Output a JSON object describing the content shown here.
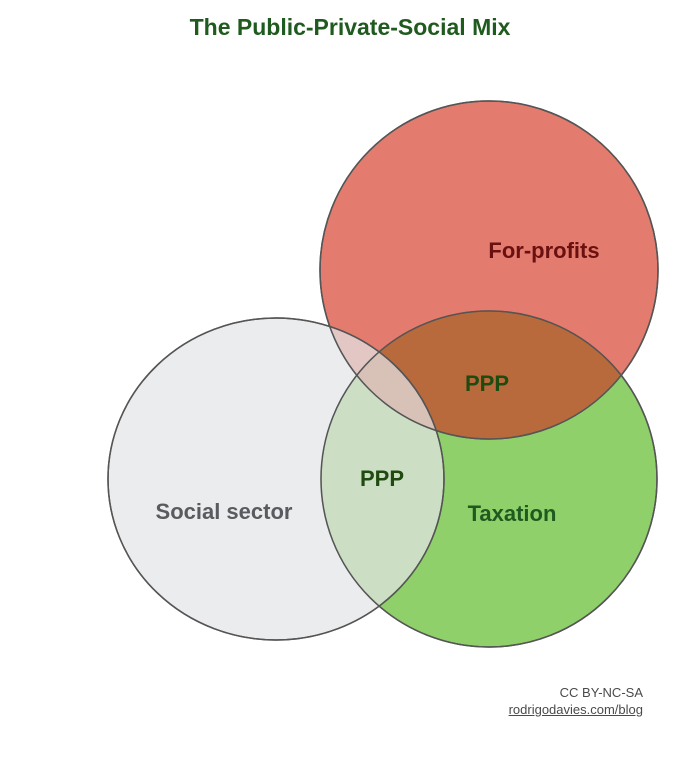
{
  "title": "The Public-Private-Social Mix",
  "colors": {
    "title": "#1f5a1f",
    "for_profits_fill": "#d84a36",
    "for_profits_label": "#6a1010",
    "taxation_fill": "#8fd06a",
    "taxation_label": "#1f5a1f",
    "social_fill": "#e3e4e7",
    "social_label": "#5a5b5e",
    "ppp_label": "#1f4a10",
    "stroke": "#555555"
  },
  "sets": {
    "for_profits": "For-profits",
    "taxation": "Taxation",
    "social_sector": "Social sector"
  },
  "intersections": {
    "for_profits_taxation": "PPP",
    "social_taxation": "PPP"
  },
  "credit": {
    "license": "CC BY-NC-SA",
    "site": "rodrigodavies.com/blog"
  }
}
